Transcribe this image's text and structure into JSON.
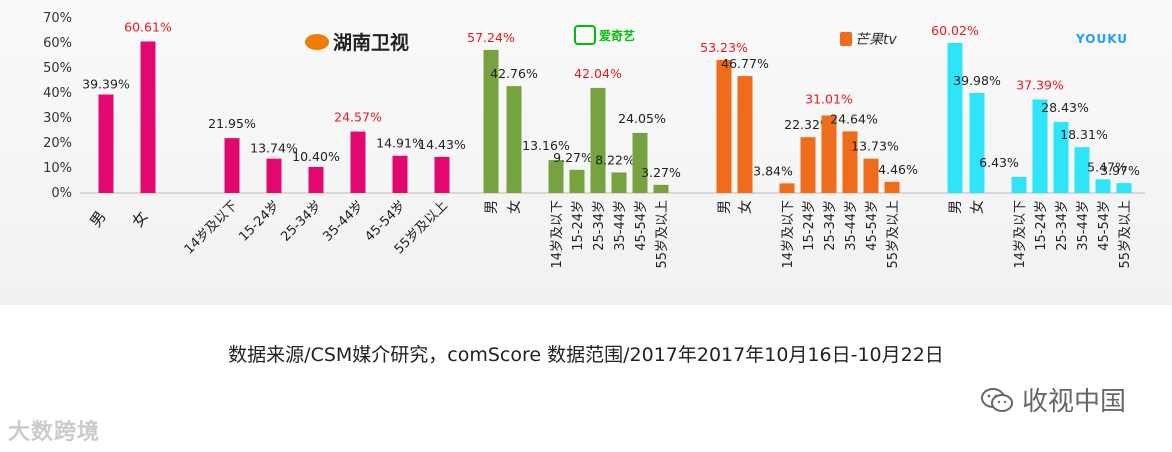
{
  "chart_data": {
    "type": "bar",
    "ylim": [
      0,
      70
    ],
    "yticks": [
      "0%",
      "10%",
      "20%",
      "30%",
      "40%",
      "50%",
      "60%",
      "70%"
    ],
    "groups": [
      {
        "logo": "湖南卫视",
        "color": "#e3086f",
        "gender": {
          "categories": [
            "男",
            "女"
          ],
          "values": [
            39.39,
            60.61
          ],
          "labels": [
            "39.39%",
            "60.61%"
          ],
          "highlight": [
            false,
            true
          ]
        },
        "age": {
          "categories": [
            "14岁及以下",
            "15-24岁",
            "25-34岁",
            "35-44岁",
            "45-54岁",
            "55岁及以上"
          ],
          "values": [
            21.95,
            13.74,
            10.4,
            24.57,
            14.91,
            14.43
          ],
          "labels": [
            "21.95%",
            "13.74%",
            "10.40%",
            "24.57%",
            "14.91%",
            "14.43%"
          ],
          "highlight": [
            false,
            false,
            false,
            true,
            false,
            false
          ]
        }
      },
      {
        "logo": "爱奇艺",
        "color": "#76a33f",
        "gender": {
          "categories": [
            "男",
            "女"
          ],
          "values": [
            57.24,
            42.76
          ],
          "labels": [
            "57.24%",
            "42.76%"
          ],
          "highlight": [
            true,
            false
          ]
        },
        "age": {
          "categories": [
            "14岁及以下",
            "15-24岁",
            "25-34岁",
            "35-44岁",
            "45-54岁",
            "55岁及以上"
          ],
          "values": [
            13.16,
            9.27,
            42.04,
            8.22,
            24.05,
            3.27
          ],
          "labels": [
            "13.16%",
            "9.27%",
            "42.04%",
            "8.22%",
            "24.05%",
            "3.27%"
          ],
          "highlight": [
            false,
            false,
            true,
            false,
            false,
            false
          ]
        }
      },
      {
        "logo": "芒果tv",
        "color": "#f06c1a",
        "gender": {
          "categories": [
            "男",
            "女"
          ],
          "values": [
            53.23,
            46.77
          ],
          "labels": [
            "53.23%",
            "46.77%"
          ],
          "highlight": [
            true,
            false
          ]
        },
        "age": {
          "categories": [
            "14岁及以下",
            "15-24岁",
            "25-34岁",
            "35-44岁",
            "45-54岁",
            "55岁及以上"
          ],
          "values": [
            3.84,
            22.32,
            31.01,
            24.64,
            13.73,
            4.46
          ],
          "labels": [
            "3.84%",
            "22.32%",
            "31.01%",
            "24.64%",
            "13.73%",
            "4.46%"
          ],
          "highlight": [
            false,
            false,
            true,
            false,
            false,
            false
          ]
        }
      },
      {
        "logo": "YOUKU",
        "color": "#2ee4f8",
        "gender": {
          "categories": [
            "男",
            "女"
          ],
          "values": [
            60.02,
            39.98
          ],
          "labels": [
            "60.02%",
            "39.98%"
          ],
          "highlight": [
            true,
            false
          ]
        },
        "age": {
          "categories": [
            "14岁及以下",
            "15-24岁",
            "25-34岁",
            "35-44岁",
            "45-54岁",
            "55岁及以上"
          ],
          "values": [
            6.43,
            37.39,
            28.43,
            18.31,
            5.47,
            3.97
          ],
          "labels": [
            "6.43%",
            "37.39%",
            "28.43%",
            "18.31%",
            "5.47%",
            "3.97%"
          ],
          "highlight": [
            false,
            true,
            false,
            false,
            false,
            false
          ]
        }
      }
    ],
    "highlight_color": "#e8191e",
    "label_color": "#222222"
  },
  "footer": {
    "source": "数据来源/CSM媒介研究，comScore  数据范围/2017年2017年10月16日-10月22日"
  },
  "watermarks": {
    "left": "大数跨境",
    "right": "收视中国"
  }
}
